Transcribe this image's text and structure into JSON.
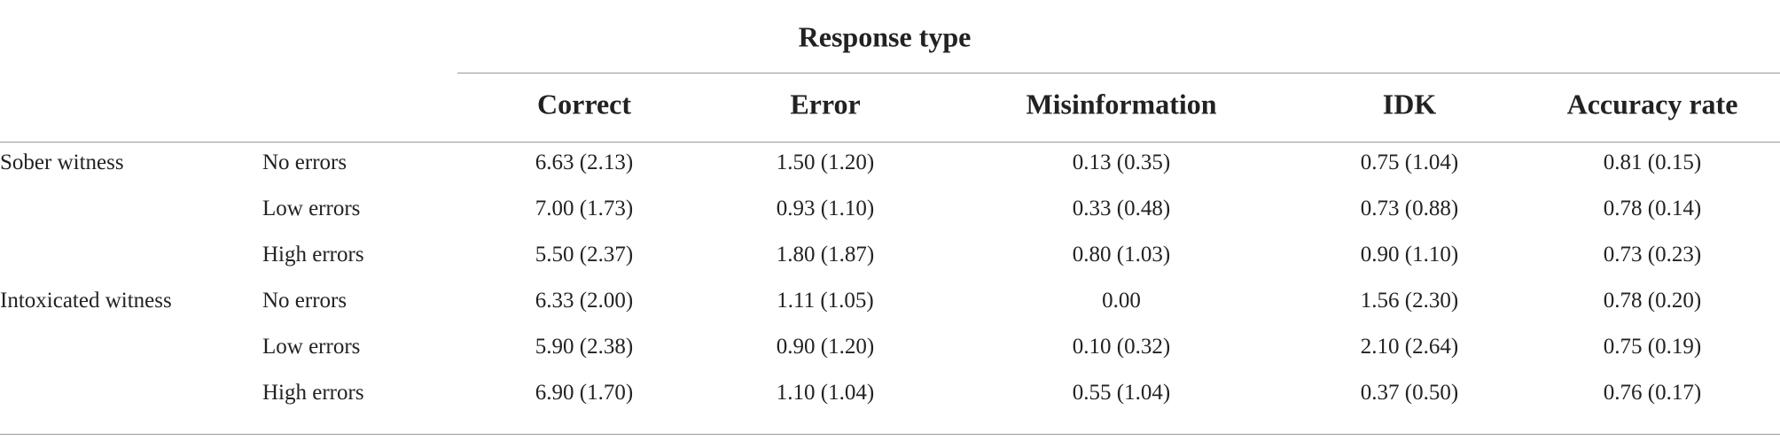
{
  "header": {
    "title": "Response type",
    "columns": [
      "Correct",
      "Error",
      "Misinformation",
      "IDK",
      "Accuracy rate"
    ]
  },
  "groups": [
    {
      "name": "Sober witness",
      "rows": [
        {
          "label": "No errors",
          "cells": [
            "6.63 (2.13)",
            "1.50 (1.20)",
            "0.13 (0.35)",
            "0.75 (1.04)",
            "0.81 (0.15)"
          ]
        },
        {
          "label": "Low errors",
          "cells": [
            "7.00 (1.73)",
            "0.93 (1.10)",
            "0.33 (0.48)",
            "0.73 (0.88)",
            "0.78 (0.14)"
          ]
        },
        {
          "label": "High errors",
          "cells": [
            "5.50 (2.37)",
            "1.80 (1.87)",
            "0.80 (1.03)",
            "0.90 (1.10)",
            "0.73 (0.23)"
          ]
        }
      ]
    },
    {
      "name": "Intoxicated witness",
      "rows": [
        {
          "label": "No errors",
          "cells": [
            "6.33 (2.00)",
            "1.11 (1.05)",
            "0.00",
            "1.56 (2.30)",
            "0.78 (0.20)"
          ]
        },
        {
          "label": "Low errors",
          "cells": [
            "5.90 (2.38)",
            "0.90 (1.20)",
            "0.10 (0.32)",
            "2.10 (2.64)",
            "0.75 (0.19)"
          ]
        },
        {
          "label": "High errors",
          "cells": [
            "6.90 (1.70)",
            "1.10 (1.04)",
            "0.55 (1.04)",
            "0.37 (0.50)",
            "0.76 (0.17)"
          ]
        }
      ]
    }
  ]
}
